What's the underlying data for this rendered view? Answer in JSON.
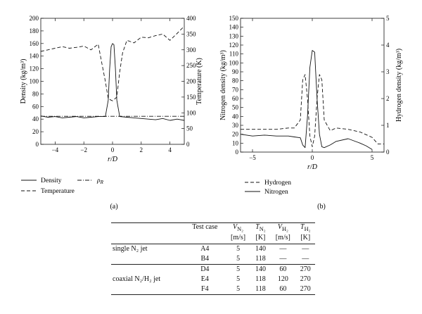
{
  "chart_data": [
    {
      "panel": "(a)",
      "type": "line",
      "xlabel": "r/D",
      "ylabel_left": "Density (kg/m³)",
      "ylabel_right": "Temperature (K)",
      "xlim": [
        -5,
        5
      ],
      "ylim_left": [
        0,
        200
      ],
      "ylim_right": [
        0,
        400
      ],
      "xticks": [
        "-4",
        "-2",
        "0",
        "2",
        "4"
      ],
      "yticks_left": [
        "0",
        "20",
        "40",
        "60",
        "80",
        "100",
        "120",
        "140",
        "160",
        "180",
        "200"
      ],
      "yticks_right": [
        "0",
        "50",
        "100",
        "150",
        "200",
        "250",
        "300",
        "350",
        "400"
      ],
      "grid": false,
      "legend_position": "below",
      "series": [
        {
          "name": "Density",
          "axis": "left",
          "style": "solid",
          "x": [
            -5,
            -4.5,
            -4,
            -3.5,
            -3,
            -2.5,
            -2,
            -1.5,
            -1,
            -0.5,
            -0.3,
            -0.2,
            -0.1,
            0,
            0.1,
            0.2,
            0.3,
            0.5,
            1,
            1.5,
            2,
            2.5,
            3,
            3.5,
            4,
            4.5,
            5
          ],
          "y": [
            45,
            43,
            44,
            42,
            43,
            44,
            42,
            43,
            44,
            44,
            70,
            120,
            155,
            160,
            158,
            120,
            70,
            44,
            43,
            42,
            41,
            40,
            39,
            41,
            38,
            40,
            38
          ]
        },
        {
          "name": "Temperature",
          "axis": "right",
          "style": "dashed",
          "x": [
            -5,
            -4.5,
            -4,
            -3.5,
            -3,
            -2.5,
            -2,
            -1.5,
            -1,
            -0.8,
            -0.5,
            -0.3,
            -0.1,
            0,
            0.1,
            0.3,
            0.5,
            0.7,
            1,
            1.5,
            2,
            2.5,
            3,
            3.5,
            4,
            4.5,
            5
          ],
          "y": [
            295,
            300,
            305,
            310,
            305,
            308,
            312,
            300,
            318,
            270,
            200,
            145,
            140,
            138,
            142,
            150,
            230,
            290,
            330,
            322,
            340,
            338,
            345,
            350,
            330,
            352,
            375
          ]
        },
        {
          "name": "ρR",
          "axis": "left",
          "style": "dash-dot",
          "x": [
            -5,
            5
          ],
          "y": [
            44.5,
            44.5
          ]
        }
      ]
    },
    {
      "panel": "(b)",
      "type": "line",
      "xlabel": "r/D",
      "ylabel_left": "Nitrogen density (kg/m³)",
      "ylabel_right": "Hydrogen density (kg/m³)",
      "xlim": [
        -6,
        6
      ],
      "ylim_left": [
        0,
        150
      ],
      "ylim_right": [
        0,
        5
      ],
      "xticks": [
        "-5",
        "0",
        "5"
      ],
      "yticks_left": [
        "0",
        "10",
        "20",
        "30",
        "40",
        "50",
        "60",
        "70",
        "80",
        "90",
        "100",
        "110",
        "120",
        "130",
        "140",
        "150"
      ],
      "yticks_right": [
        "0",
        "1",
        "2",
        "3",
        "4",
        "5"
      ],
      "grid": false,
      "legend_position": "below",
      "series": [
        {
          "name": "Hydrogen",
          "axis": "right",
          "style": "dashed",
          "x": [
            -6,
            -5,
            -4,
            -3,
            -2,
            -1.5,
            -1,
            -0.8,
            -0.6,
            -0.4,
            -0.2,
            0,
            0.2,
            0.4,
            0.6,
            0.8,
            1,
            1.5,
            2,
            3,
            4,
            5,
            5.5,
            6
          ],
          "y": [
            0.85,
            0.85,
            0.85,
            0.85,
            0.9,
            0.9,
            1.2,
            2.7,
            2.9,
            2.0,
            0.6,
            0.2,
            0.6,
            2.0,
            2.9,
            2.7,
            1.2,
            0.8,
            0.9,
            0.85,
            0.75,
            0.55,
            0.3,
            0.3
          ]
        },
        {
          "name": "Nitrogen",
          "axis": "left",
          "style": "solid",
          "x": [
            -6,
            -5,
            -4,
            -3,
            -2,
            -1.5,
            -1,
            -0.8,
            -0.6,
            -0.4,
            -0.2,
            0,
            0.2,
            0.4,
            0.6,
            0.8,
            1,
            1.5,
            2,
            3,
            4,
            4.5,
            5
          ],
          "y": [
            20,
            18,
            19,
            18,
            18,
            17,
            16,
            8,
            5,
            40,
            95,
            114,
            112,
            60,
            20,
            6,
            5,
            8,
            12,
            15,
            10,
            7,
            3
          ]
        }
      ]
    }
  ],
  "captions": {
    "a": "(a)",
    "b": "(b)"
  },
  "table": {
    "headers": [
      {
        "main": "Test case",
        "unit": ""
      },
      {
        "var": "V",
        "sub": "N₂",
        "unit": "[m/s]"
      },
      {
        "var": "T",
        "sub": "N₂",
        "unit": "[K]"
      },
      {
        "var": "V",
        "sub": "H₂",
        "unit": "[m/s]"
      },
      {
        "var": "T",
        "sub": "H₂",
        "unit": "[K]"
      }
    ],
    "rows": [
      {
        "group": "single N₂ jet",
        "case": "A4",
        "vn2": "5",
        "tn2": "140",
        "vh2": "—",
        "th2": "—"
      },
      {
        "group": "",
        "case": "B4",
        "vn2": "5",
        "tn2": "118",
        "vh2": "—",
        "th2": "—"
      },
      {
        "group": "",
        "case": "D4",
        "vn2": "5",
        "tn2": "140",
        "vh2": "60",
        "th2": "270"
      },
      {
        "group": "coaxial N₂/H₂ jet",
        "case": "E4",
        "vn2": "5",
        "tn2": "118",
        "vh2": "120",
        "th2": "270"
      },
      {
        "group": "",
        "case": "F4",
        "vn2": "5",
        "tn2": "118",
        "vh2": "60",
        "th2": "270"
      }
    ]
  }
}
